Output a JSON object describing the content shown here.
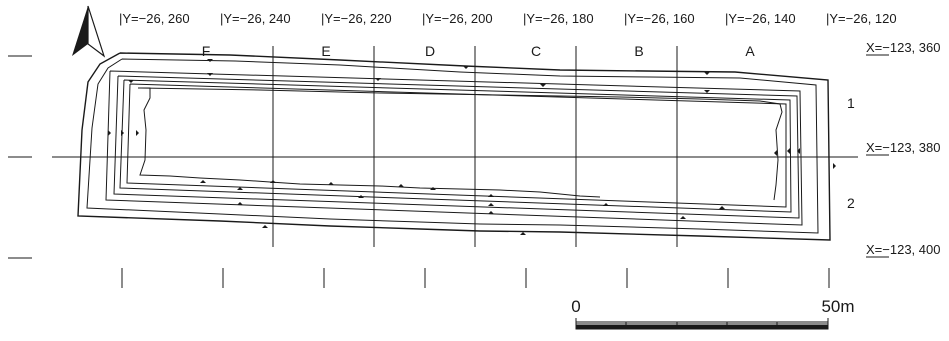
{
  "y_labels": [
    "|Y=−26, 260",
    "|Y=−26, 240",
    "|Y=−26, 220",
    "|Y=−26, 200",
    "|Y=−26, 180",
    "|Y=−26, 160",
    "|Y=−26, 140",
    "|Y=−26, 120"
  ],
  "x_labels": [
    "X=−123, 360",
    "X=−123, 380",
    "X=−123, 400"
  ],
  "grid_letters": [
    "F",
    "E",
    "D",
    "C",
    "B",
    "A"
  ],
  "row_numbers": [
    "1",
    "2"
  ],
  "scale": {
    "start": "0",
    "end": "50m"
  },
  "colors": {
    "ink": "#1a1a1a",
    "background": "#ffffff"
  },
  "north_arrow_icon": "north-arrow-icon"
}
